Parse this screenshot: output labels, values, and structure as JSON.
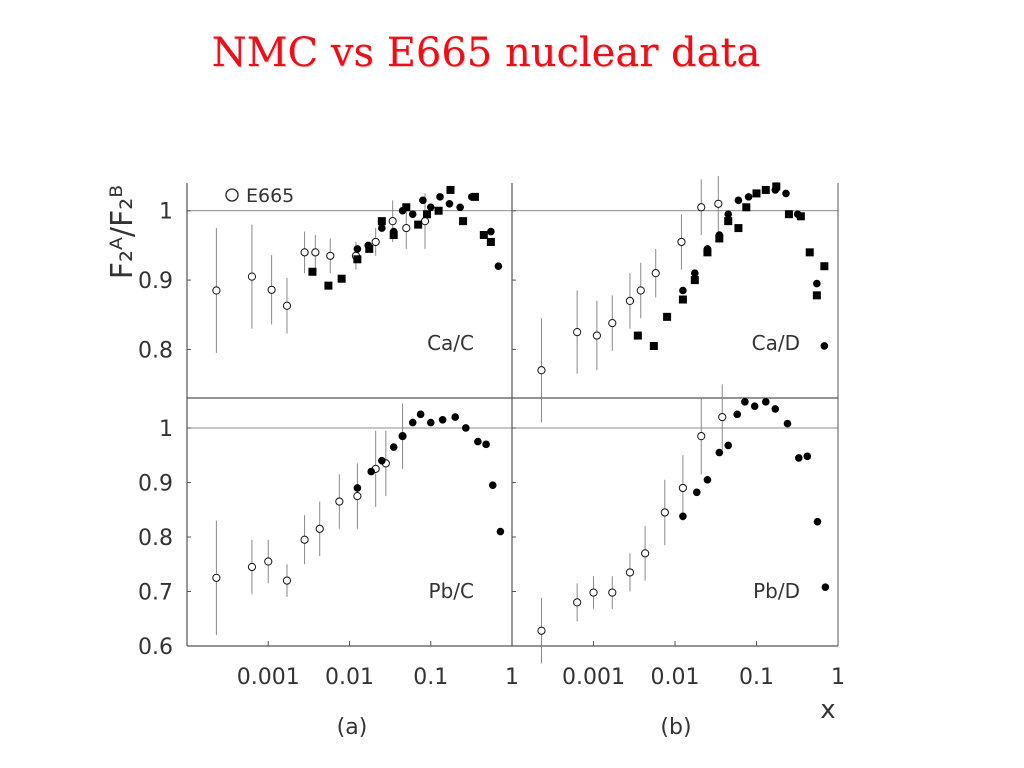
{
  "slide": {
    "title": "NMC vs E665 nuclear data"
  },
  "figure": {
    "ylabel": "F₂ᴬ/F₂ᴮ",
    "xlabel": "x",
    "legend": {
      "label": "E665",
      "placement": "top-left"
    },
    "column_labels": [
      "(a)",
      "(b)"
    ],
    "x_scale": "log",
    "x_ticks": [
      0.001,
      0.01,
      0.1,
      1
    ],
    "x_tick_labels": [
      "0.001",
      "0.01",
      "0.1",
      "1"
    ],
    "colors": {
      "line": "#000000",
      "error_bar": "#888888",
      "frame": "#555555"
    }
  },
  "chart_data": [
    {
      "type": "scatter",
      "panel": "Ca/C",
      "x_scale": "log",
      "xlim": [
        0.0001,
        1
      ],
      "ylim": [
        0.73,
        1.04
      ],
      "y_ticks": [
        0.8,
        0.9,
        1
      ],
      "y_tick_labels": [
        "0.8",
        "0.9",
        "1"
      ],
      "reference_line": 1,
      "series": [
        {
          "name": "E665",
          "marker": "open-circle",
          "points": [
            {
              "x": 0.00023,
              "y": 0.885,
              "err": 0.09
            },
            {
              "x": 0.00063,
              "y": 0.905,
              "err": 0.075
            },
            {
              "x": 0.0011,
              "y": 0.886,
              "err": 0.05
            },
            {
              "x": 0.0017,
              "y": 0.863,
              "err": 0.04
            },
            {
              "x": 0.0028,
              "y": 0.94,
              "err": 0.03
            },
            {
              "x": 0.0038,
              "y": 0.94,
              "err": 0.025
            },
            {
              "x": 0.0058,
              "y": 0.935,
              "err": 0.025
            },
            {
              "x": 0.012,
              "y": 0.935,
              "err": 0.02
            },
            {
              "x": 0.021,
              "y": 0.955,
              "err": 0.02
            },
            {
              "x": 0.034,
              "y": 0.985,
              "err": 0.03
            },
            {
              "x": 0.05,
              "y": 0.975,
              "err": 0.03
            },
            {
              "x": 0.085,
              "y": 0.985,
              "err": 0.04
            }
          ]
        },
        {
          "name": "",
          "marker": "filled-square",
          "points": [
            {
              "x": 0.0035,
              "y": 0.912
            },
            {
              "x": 0.0055,
              "y": 0.892
            },
            {
              "x": 0.008,
              "y": 0.902
            },
            {
              "x": 0.0125,
              "y": 0.93
            },
            {
              "x": 0.0175,
              "y": 0.945
            },
            {
              "x": 0.025,
              "y": 0.985
            },
            {
              "x": 0.035,
              "y": 0.965
            },
            {
              "x": 0.05,
              "y": 1.005
            },
            {
              "x": 0.07,
              "y": 0.98
            },
            {
              "x": 0.09,
              "y": 0.995
            },
            {
              "x": 0.125,
              "y": 1.0
            },
            {
              "x": 0.175,
              "y": 1.03
            },
            {
              "x": 0.25,
              "y": 0.985
            },
            {
              "x": 0.35,
              "y": 1.02
            },
            {
              "x": 0.45,
              "y": 0.965
            },
            {
              "x": 0.55,
              "y": 0.955
            }
          ]
        },
        {
          "name": "",
          "marker": "filled-circle",
          "points": [
            {
              "x": 0.0125,
              "y": 0.945
            },
            {
              "x": 0.017,
              "y": 0.95
            },
            {
              "x": 0.025,
              "y": 0.975
            },
            {
              "x": 0.035,
              "y": 0.97
            },
            {
              "x": 0.045,
              "y": 1.0
            },
            {
              "x": 0.06,
              "y": 0.995
            },
            {
              "x": 0.08,
              "y": 1.015
            },
            {
              "x": 0.1,
              "y": 1.005
            },
            {
              "x": 0.13,
              "y": 1.02
            },
            {
              "x": 0.17,
              "y": 1.01
            },
            {
              "x": 0.23,
              "y": 1.005
            },
            {
              "x": 0.32,
              "y": 1.02
            },
            {
              "x": 0.45,
              "y": 0.965
            },
            {
              "x": 0.55,
              "y": 0.97
            },
            {
              "x": 0.68,
              "y": 0.92
            }
          ]
        }
      ]
    },
    {
      "type": "scatter",
      "panel": "Ca/D",
      "x_scale": "log",
      "xlim": [
        0.0001,
        1
      ],
      "ylim": [
        0.73,
        1.04
      ],
      "y_ticks": [
        0.8,
        0.9,
        1
      ],
      "reference_line": 1,
      "series": [
        {
          "name": "E665",
          "marker": "open-circle",
          "points": [
            {
              "x": 0.00023,
              "y": 0.77,
              "err": 0.075
            },
            {
              "x": 0.00063,
              "y": 0.825,
              "err": 0.06
            },
            {
              "x": 0.0011,
              "y": 0.82,
              "err": 0.05
            },
            {
              "x": 0.0017,
              "y": 0.838,
              "err": 0.04
            },
            {
              "x": 0.0028,
              "y": 0.87,
              "err": 0.04
            },
            {
              "x": 0.0038,
              "y": 0.885,
              "err": 0.04
            },
            {
              "x": 0.0058,
              "y": 0.91,
              "err": 0.035
            },
            {
              "x": 0.012,
              "y": 0.955,
              "err": 0.04
            },
            {
              "x": 0.021,
              "y": 1.005,
              "err": 0.04
            },
            {
              "x": 0.034,
              "y": 1.01,
              "err": 0.04
            }
          ]
        },
        {
          "name": "",
          "marker": "filled-square",
          "points": [
            {
              "x": 0.0035,
              "y": 0.82
            },
            {
              "x": 0.0055,
              "y": 0.805
            },
            {
              "x": 0.008,
              "y": 0.847
            },
            {
              "x": 0.0125,
              "y": 0.872
            },
            {
              "x": 0.0175,
              "y": 0.9
            },
            {
              "x": 0.025,
              "y": 0.94
            },
            {
              "x": 0.035,
              "y": 0.96
            },
            {
              "x": 0.045,
              "y": 0.985
            },
            {
              "x": 0.06,
              "y": 0.975
            },
            {
              "x": 0.075,
              "y": 1.005
            },
            {
              "x": 0.1,
              "y": 1.025
            },
            {
              "x": 0.13,
              "y": 1.03
            },
            {
              "x": 0.175,
              "y": 1.035
            },
            {
              "x": 0.25,
              "y": 0.995
            },
            {
              "x": 0.35,
              "y": 0.992
            },
            {
              "x": 0.45,
              "y": 0.94
            },
            {
              "x": 0.55,
              "y": 0.878
            },
            {
              "x": 0.68,
              "y": 0.92
            }
          ]
        },
        {
          "name": "",
          "marker": "filled-circle",
          "points": [
            {
              "x": 0.0125,
              "y": 0.885
            },
            {
              "x": 0.0175,
              "y": 0.91
            },
            {
              "x": 0.025,
              "y": 0.945
            },
            {
              "x": 0.035,
              "y": 0.965
            },
            {
              "x": 0.045,
              "y": 0.995
            },
            {
              "x": 0.06,
              "y": 1.015
            },
            {
              "x": 0.08,
              "y": 1.02
            },
            {
              "x": 0.1,
              "y": 1.025
            },
            {
              "x": 0.13,
              "y": 1.03
            },
            {
              "x": 0.17,
              "y": 1.03
            },
            {
              "x": 0.23,
              "y": 1.025
            },
            {
              "x": 0.32,
              "y": 0.995
            },
            {
              "x": 0.45,
              "y": 0.94
            },
            {
              "x": 0.55,
              "y": 0.895
            },
            {
              "x": 0.68,
              "y": 0.805
            }
          ]
        }
      ]
    },
    {
      "type": "scatter",
      "panel": "Pb/C",
      "x_scale": "log",
      "xlim": [
        0.0001,
        1
      ],
      "ylim": [
        0.6,
        1.055
      ],
      "y_ticks": [
        0.6,
        0.7,
        0.8,
        0.9,
        1
      ],
      "y_tick_labels": [
        "0.6",
        "0.7",
        "0.8",
        "0.9",
        "1"
      ],
      "reference_line": 1,
      "series": [
        {
          "name": "E665",
          "marker": "open-circle",
          "points": [
            {
              "x": 0.00023,
              "y": 0.725,
              "err": 0.105
            },
            {
              "x": 0.00063,
              "y": 0.745,
              "err": 0.05
            },
            {
              "x": 0.001,
              "y": 0.755,
              "err": 0.04
            },
            {
              "x": 0.0017,
              "y": 0.72,
              "err": 0.03
            },
            {
              "x": 0.0028,
              "y": 0.795,
              "err": 0.045
            },
            {
              "x": 0.0043,
              "y": 0.815,
              "err": 0.05
            },
            {
              "x": 0.0075,
              "y": 0.865,
              "err": 0.05
            },
            {
              "x": 0.0125,
              "y": 0.875,
              "err": 0.06
            },
            {
              "x": 0.021,
              "y": 0.925,
              "err": 0.07
            },
            {
              "x": 0.028,
              "y": 0.935,
              "err": 0.06
            },
            {
              "x": 0.045,
              "y": 0.985,
              "err": 0.06
            }
          ]
        },
        {
          "name": "",
          "marker": "filled-circle",
          "points": [
            {
              "x": 0.0125,
              "y": 0.89
            },
            {
              "x": 0.0185,
              "y": 0.92
            },
            {
              "x": 0.025,
              "y": 0.94
            },
            {
              "x": 0.035,
              "y": 0.965
            },
            {
              "x": 0.045,
              "y": 0.985
            },
            {
              "x": 0.06,
              "y": 1.01
            },
            {
              "x": 0.075,
              "y": 1.025
            },
            {
              "x": 0.1,
              "y": 1.01
            },
            {
              "x": 0.14,
              "y": 1.015
            },
            {
              "x": 0.2,
              "y": 1.02
            },
            {
              "x": 0.27,
              "y": 1.0
            },
            {
              "x": 0.38,
              "y": 0.975
            },
            {
              "x": 0.48,
              "y": 0.97
            },
            {
              "x": 0.58,
              "y": 0.895
            },
            {
              "x": 0.72,
              "y": 0.81
            }
          ]
        }
      ]
    },
    {
      "type": "scatter",
      "panel": "Pb/D",
      "x_scale": "log",
      "xlim": [
        0.0001,
        1
      ],
      "ylim": [
        0.6,
        1.055
      ],
      "y_ticks": [
        0.6,
        0.7,
        0.8,
        0.9,
        1
      ],
      "reference_line": 1,
      "series": [
        {
          "name": "E665",
          "marker": "open-circle",
          "points": [
            {
              "x": 0.00023,
              "y": 0.628,
              "err": 0.06
            },
            {
              "x": 0.00063,
              "y": 0.68,
              "err": 0.035
            },
            {
              "x": 0.001,
              "y": 0.698,
              "err": 0.03
            },
            {
              "x": 0.0017,
              "y": 0.698,
              "err": 0.03
            },
            {
              "x": 0.0028,
              "y": 0.735,
              "err": 0.035
            },
            {
              "x": 0.0043,
              "y": 0.77,
              "err": 0.05
            },
            {
              "x": 0.0075,
              "y": 0.845,
              "err": 0.06
            },
            {
              "x": 0.0125,
              "y": 0.89,
              "err": 0.06
            },
            {
              "x": 0.021,
              "y": 0.985,
              "err": 0.07
            },
            {
              "x": 0.038,
              "y": 1.02,
              "err": 0.06
            }
          ]
        },
        {
          "name": "",
          "marker": "filled-circle",
          "points": [
            {
              "x": 0.0125,
              "y": 0.838
            },
            {
              "x": 0.0185,
              "y": 0.882
            },
            {
              "x": 0.025,
              "y": 0.905
            },
            {
              "x": 0.035,
              "y": 0.955
            },
            {
              "x": 0.045,
              "y": 0.968
            },
            {
              "x": 0.058,
              "y": 1.025
            },
            {
              "x": 0.072,
              "y": 1.048
            },
            {
              "x": 0.095,
              "y": 1.04
            },
            {
              "x": 0.13,
              "y": 1.048
            },
            {
              "x": 0.17,
              "y": 1.035
            },
            {
              "x": 0.24,
              "y": 1.008
            },
            {
              "x": 0.33,
              "y": 0.945
            },
            {
              "x": 0.42,
              "y": 0.948
            },
            {
              "x": 0.56,
              "y": 0.828
            },
            {
              "x": 0.7,
              "y": 0.708
            }
          ]
        }
      ]
    }
  ]
}
